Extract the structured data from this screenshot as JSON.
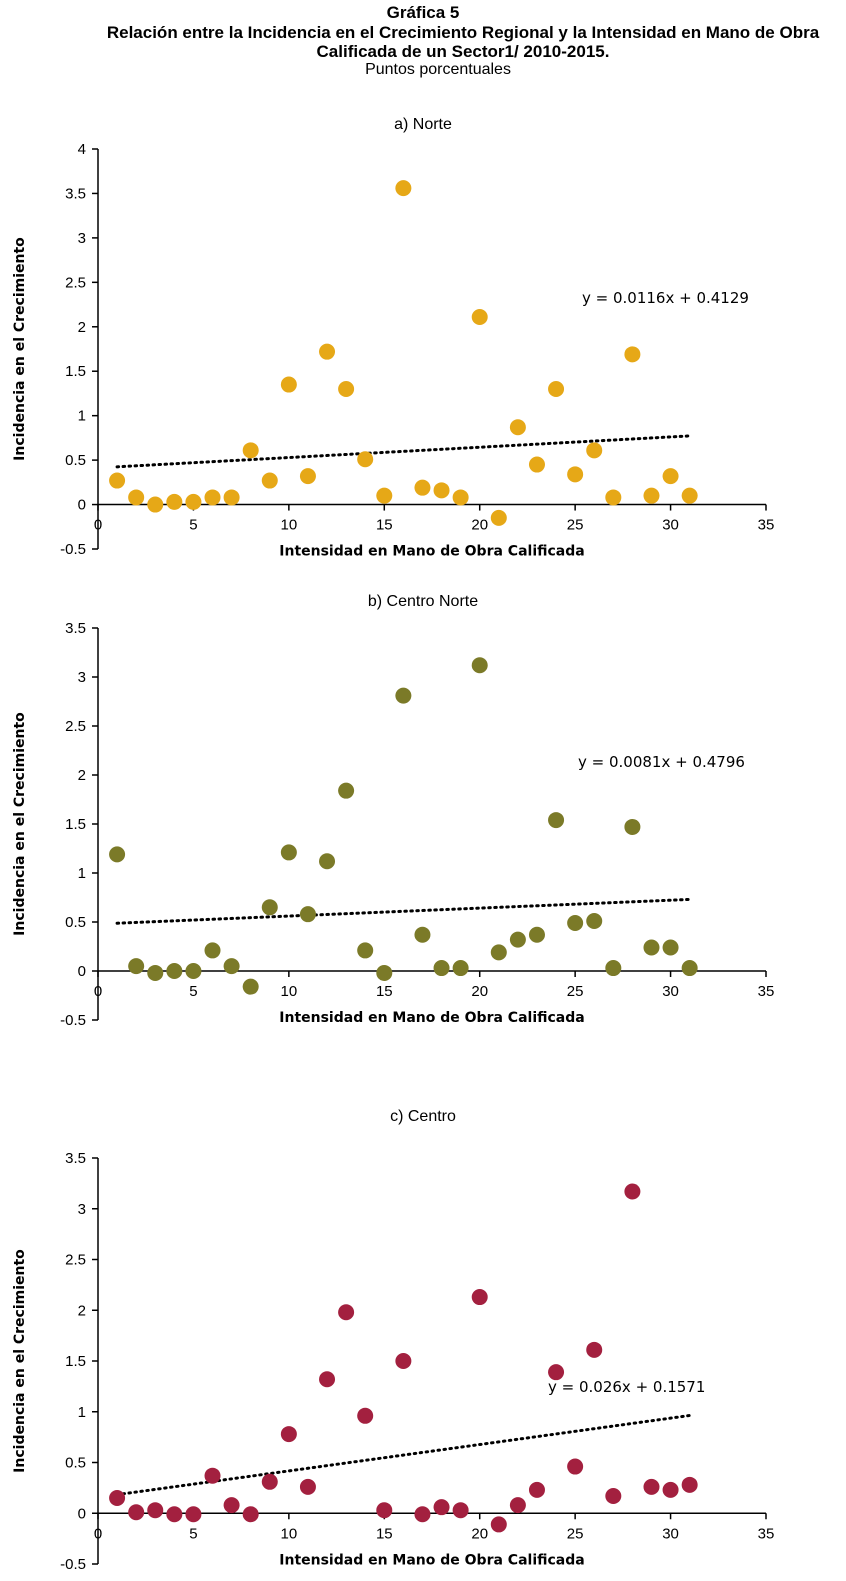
{
  "header": {
    "title": "Gráfica 5",
    "subtitle": "Relación entre la Incidencia en el Crecimiento Regional y la Intensidad en Mano de Obra Calificada de un Sector1/ 2010-2015.",
    "units": "Puntos porcentuales"
  },
  "chart_data": [
    {
      "type": "scatter",
      "title": "a) Norte",
      "xlabel": "Intensidad en Mano de Obra Calificada",
      "ylabel": "Incidencia en el Crecimiento",
      "xlim": [
        0,
        35
      ],
      "ylim": [
        -0.5,
        4
      ],
      "xticks": [
        0,
        5,
        10,
        15,
        20,
        25,
        30,
        35
      ],
      "yticks": [
        -0.5,
        0,
        0.5,
        1,
        1.5,
        2,
        2.5,
        3,
        3.5,
        4
      ],
      "color": "#E6A817",
      "x": [
        1,
        2,
        3,
        4,
        5,
        6,
        7,
        8,
        9,
        10,
        11,
        12,
        13,
        14,
        15,
        16,
        17,
        18,
        19,
        20,
        21,
        22,
        23,
        24,
        25,
        26,
        27,
        28,
        29,
        30,
        31
      ],
      "y": [
        0.27,
        0.08,
        0.0,
        0.03,
        0.03,
        0.08,
        0.08,
        0.61,
        0.27,
        1.35,
        0.32,
        1.72,
        1.3,
        0.51,
        0.1,
        3.56,
        0.19,
        0.16,
        0.08,
        2.11,
        -0.15,
        0.87,
        0.45,
        1.3,
        0.34,
        0.61,
        0.08,
        1.69,
        0.1,
        0.32,
        0.1
      ],
      "trendline": {
        "slope": 0.0116,
        "intercept": 0.4129,
        "x_range": [
          1,
          31
        ],
        "label": "y = 0.0116x + 0.4129"
      }
    },
    {
      "type": "scatter",
      "title": "b) Centro Norte",
      "xlabel": "Intensidad en Mano de Obra Calificada",
      "ylabel": "Incidencia en el Crecimiento",
      "xlim": [
        0,
        35
      ],
      "ylim": [
        -0.5,
        3.5
      ],
      "xticks": [
        0,
        5,
        10,
        15,
        20,
        25,
        30,
        35
      ],
      "yticks": [
        -0.5,
        0,
        0.5,
        1,
        1.5,
        2,
        2.5,
        3,
        3.5
      ],
      "color": "#7B7A28",
      "x": [
        1,
        2,
        3,
        4,
        5,
        6,
        7,
        8,
        9,
        10,
        11,
        12,
        13,
        14,
        15,
        16,
        17,
        18,
        19,
        20,
        21,
        22,
        23,
        24,
        25,
        26,
        27,
        28,
        29,
        30,
        31
      ],
      "y": [
        1.19,
        0.05,
        -0.02,
        0.0,
        0.0,
        0.21,
        0.05,
        -0.16,
        0.65,
        1.21,
        0.58,
        1.12,
        1.84,
        0.21,
        -0.02,
        2.81,
        0.37,
        0.03,
        0.03,
        3.12,
        0.19,
        0.32,
        0.37,
        1.54,
        0.49,
        0.51,
        0.03,
        1.47,
        0.24,
        0.24,
        0.03
      ],
      "trendline": {
        "slope": 0.0081,
        "intercept": 0.4796,
        "x_range": [
          1,
          31
        ],
        "label": "y = 0.0081x + 0.4796"
      }
    },
    {
      "type": "scatter",
      "title": "c) Centro",
      "xlabel": "Intensidad en Mano de Obra Calificada",
      "ylabel": "Incidencia en el Crecimiento",
      "xlim": [
        0,
        35
      ],
      "ylim": [
        -0.5,
        3.5
      ],
      "xticks": [
        0,
        5,
        10,
        15,
        20,
        25,
        30,
        35
      ],
      "yticks": [
        -0.5,
        0,
        0.5,
        1,
        1.5,
        2,
        2.5,
        3,
        3.5
      ],
      "color": "#A3203F",
      "x": [
        1,
        2,
        3,
        4,
        5,
        6,
        7,
        8,
        9,
        10,
        11,
        12,
        13,
        14,
        15,
        16,
        17,
        18,
        19,
        20,
        21,
        22,
        23,
        24,
        25,
        26,
        27,
        28,
        29,
        30,
        31
      ],
      "y": [
        0.15,
        0.01,
        0.03,
        -0.01,
        -0.01,
        0.37,
        0.08,
        -0.01,
        0.31,
        0.78,
        0.26,
        1.32,
        1.98,
        0.96,
        0.03,
        1.5,
        -0.01,
        0.06,
        0.03,
        2.13,
        -0.11,
        0.08,
        0.23,
        1.39,
        0.46,
        1.61,
        0.17,
        3.17,
        0.26,
        0.23,
        0.28
      ],
      "trendline": {
        "slope": 0.026,
        "intercept": 0.1571,
        "x_range": [
          1,
          31
        ],
        "label": "y = 0.026x + 0.1571"
      }
    }
  ]
}
